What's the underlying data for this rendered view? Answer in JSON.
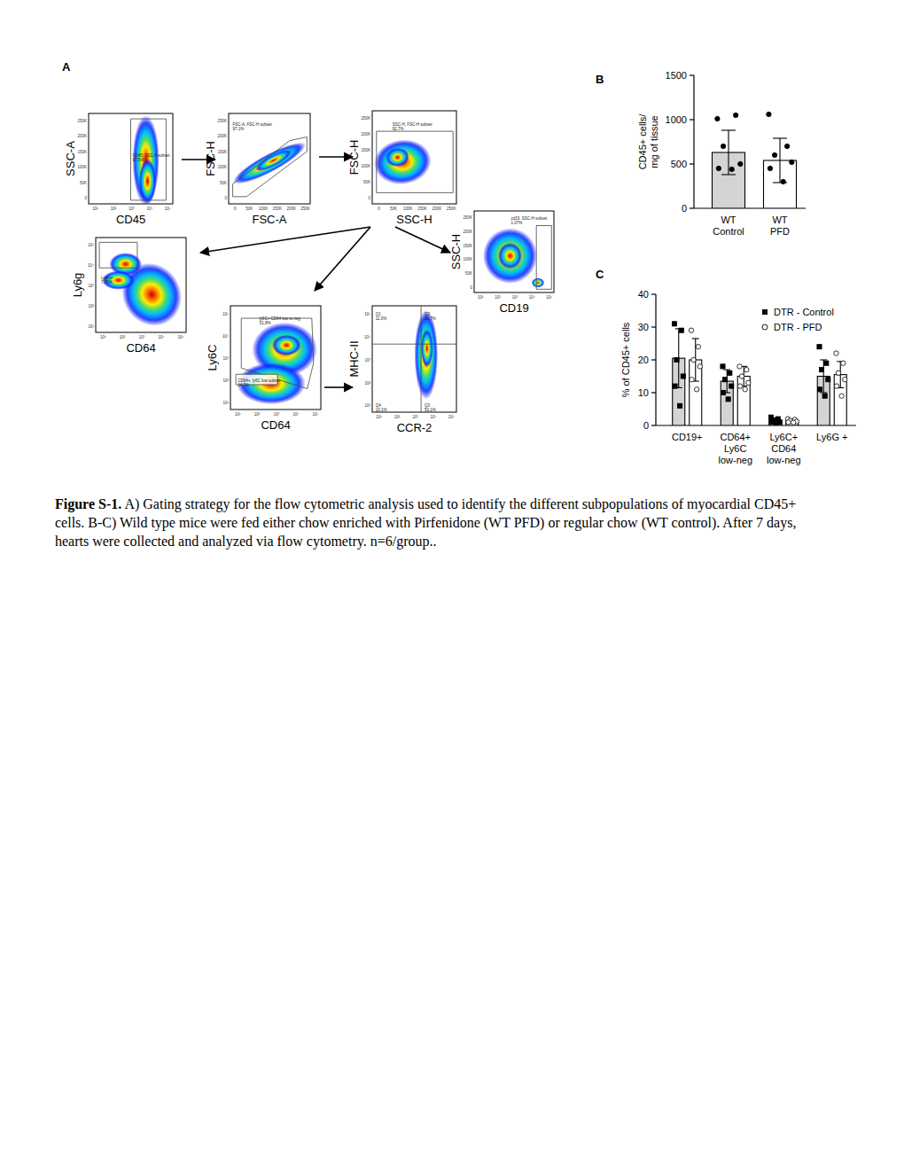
{
  "panel_labels": [
    "A",
    "B",
    "C"
  ],
  "gating": {
    "plots": [
      {
        "x_label": "CD45",
        "y_label": "SSC-A",
        "x_ticks": [
          "10¹",
          "10²",
          "10³",
          "10⁴",
          "10⁵"
        ],
        "y_ticks": [
          "0",
          "50K",
          "100K",
          "150K",
          "200K",
          "250K"
        ],
        "gates": [
          {
            "name": "CD45, SSC-A subset",
            "pct": "97.5%"
          }
        ]
      },
      {
        "x_label": "FSC-A",
        "y_label": "FSC-H",
        "x_ticks": [
          "0",
          "50K",
          "100K",
          "150K",
          "200K",
          "250K"
        ],
        "y_ticks": [
          "0",
          "50K",
          "100K",
          "150K",
          "200K",
          "250K"
        ],
        "gates": [
          {
            "name": "FSC-A, FSC-H subset",
            "pct": "97.1%"
          }
        ]
      },
      {
        "x_label": "SSC-H",
        "y_label": "FSC-H",
        "x_ticks": [
          "0",
          "50K",
          "100K",
          "150K",
          "200K",
          "250K"
        ],
        "y_ticks": [
          "0",
          "50K",
          "100K",
          "150K",
          "200K",
          "250K"
        ],
        "gates": [
          {
            "name": "SSC-H, FSC-H subset",
            "pct": "92.7%"
          }
        ]
      },
      {
        "x_label": "CD64",
        "y_label": "Ly6g",
        "x_ticks": [
          "10¹",
          "10²",
          "10³",
          "10⁴",
          "10⁵"
        ],
        "y_ticks": [
          "10¹",
          "10²",
          "10³",
          "10⁴",
          "10⁵"
        ],
        "gates": [
          {
            "name": "Ly6G+",
            "pct": "7.29%"
          }
        ]
      },
      {
        "x_label": "CD19",
        "y_label": "SSC-H",
        "x_ticks": [
          "10¹",
          "10²",
          "10³",
          "10⁴",
          "10⁵"
        ],
        "y_ticks": [
          "0",
          "50K",
          "100K",
          "150K",
          "200K",
          "250K"
        ],
        "gates": [
          {
            "name": "cd19, SSC-H subset",
            "pct": "1.07%"
          }
        ]
      },
      {
        "x_label": "CD64",
        "y_label": "Ly6C",
        "x_ticks": [
          "10¹",
          "10²",
          "10³",
          "10⁴",
          "10⁵"
        ],
        "y_ticks": [
          "10¹",
          "10²",
          "10³",
          "10⁴",
          "10⁵"
        ],
        "gates": [
          {
            "name": "ly6C+ CD64 low to neg",
            "pct": "51.8%"
          },
          {
            "name": "CD64+, ly6C low subset",
            "pct": "14.7%"
          }
        ]
      },
      {
        "x_label": "CCR-2",
        "y_label": "MHC-II",
        "x_ticks": [
          "10¹",
          "10²",
          "10³",
          "10⁴",
          "10⁵"
        ],
        "y_ticks": [
          "10¹",
          "10²",
          "10³",
          "10⁴",
          "10⁵"
        ],
        "gates": [
          {
            "name": "Q1",
            "pct": "11.0%"
          },
          {
            "name": "Q2",
            "pct": "29.7%"
          },
          {
            "name": "Q3",
            "pct": "50.1%"
          },
          {
            "name": "Q4",
            "pct": "10.1%"
          }
        ]
      }
    ]
  },
  "chart_data": [
    {
      "type": "bar",
      "y_label": "CD45+ cells/\nmg of tissue",
      "categories": [
        "WT\nControl",
        "WT\nPFD"
      ],
      "values": [
        630,
        540
      ],
      "errors": [
        250,
        250
      ],
      "colors": [
        "#d4d4d4",
        "#ffffff"
      ],
      "marker": "circle",
      "points": [
        [
          1010,
          1050,
          700,
          500,
          450,
          440
        ],
        [
          1060,
          700,
          600,
          520,
          450,
          300
        ]
      ],
      "ylim": [
        0,
        1500
      ],
      "yticks": [
        0,
        500,
        1000,
        1500
      ],
      "grid": false
    },
    {
      "type": "bar",
      "y_label": "% of CD45+ cells",
      "categories": [
        "CD19+",
        "CD64+\nLy6C\nlow-neg",
        "Ly6C+\nCD64\nlow-neg",
        "Ly6G +"
      ],
      "series": [
        {
          "name": "DTR - Control",
          "color": "#d4d4d4",
          "marker": "square",
          "values": [
            20.5,
            13.5,
            1.5,
            15
          ],
          "errors": [
            9,
            3.5,
            0.8,
            5
          ],
          "points": [
            [
              31,
              29,
              20,
              15,
              12,
              6
            ],
            [
              18,
              16,
              14,
              12,
              10,
              8
            ],
            [
              2.5,
              2,
              1.5,
              1,
              1,
              0.8
            ],
            [
              24,
              19,
              17,
              14,
              11,
              9
            ]
          ]
        },
        {
          "name": "DTR - PFD",
          "color": "#ffffff",
          "marker": "circle",
          "values": [
            20,
            15,
            1.5,
            15.5
          ],
          "errors": [
            6.5,
            3,
            0.5,
            4
          ],
          "points": [
            [
              29,
              24,
              20,
              18,
              14,
              11
            ],
            [
              18,
              17,
              15,
              13,
              12,
              11
            ],
            [
              2,
              1.8,
              1.5,
              1.2,
              1,
              0.9
            ],
            [
              22,
              19,
              16,
              14,
              12,
              9
            ]
          ]
        }
      ],
      "ylim": [
        0,
        40
      ],
      "yticks": [
        0,
        10,
        20,
        30,
        40
      ],
      "grid": false,
      "legend": "upper right"
    }
  ],
  "caption": {
    "label": "Figure S-1.",
    "text": "A) Gating strategy for the flow cytometric analysis used to identify the different subpopulations of myocardial CD45+ cells. B-C) Wild type mice were fed either chow enriched with Pirfenidone (WT PFD) or regular chow (WT control). After 7 days, hearts were collected and analyzed via flow cytometry. n=6/group.."
  }
}
